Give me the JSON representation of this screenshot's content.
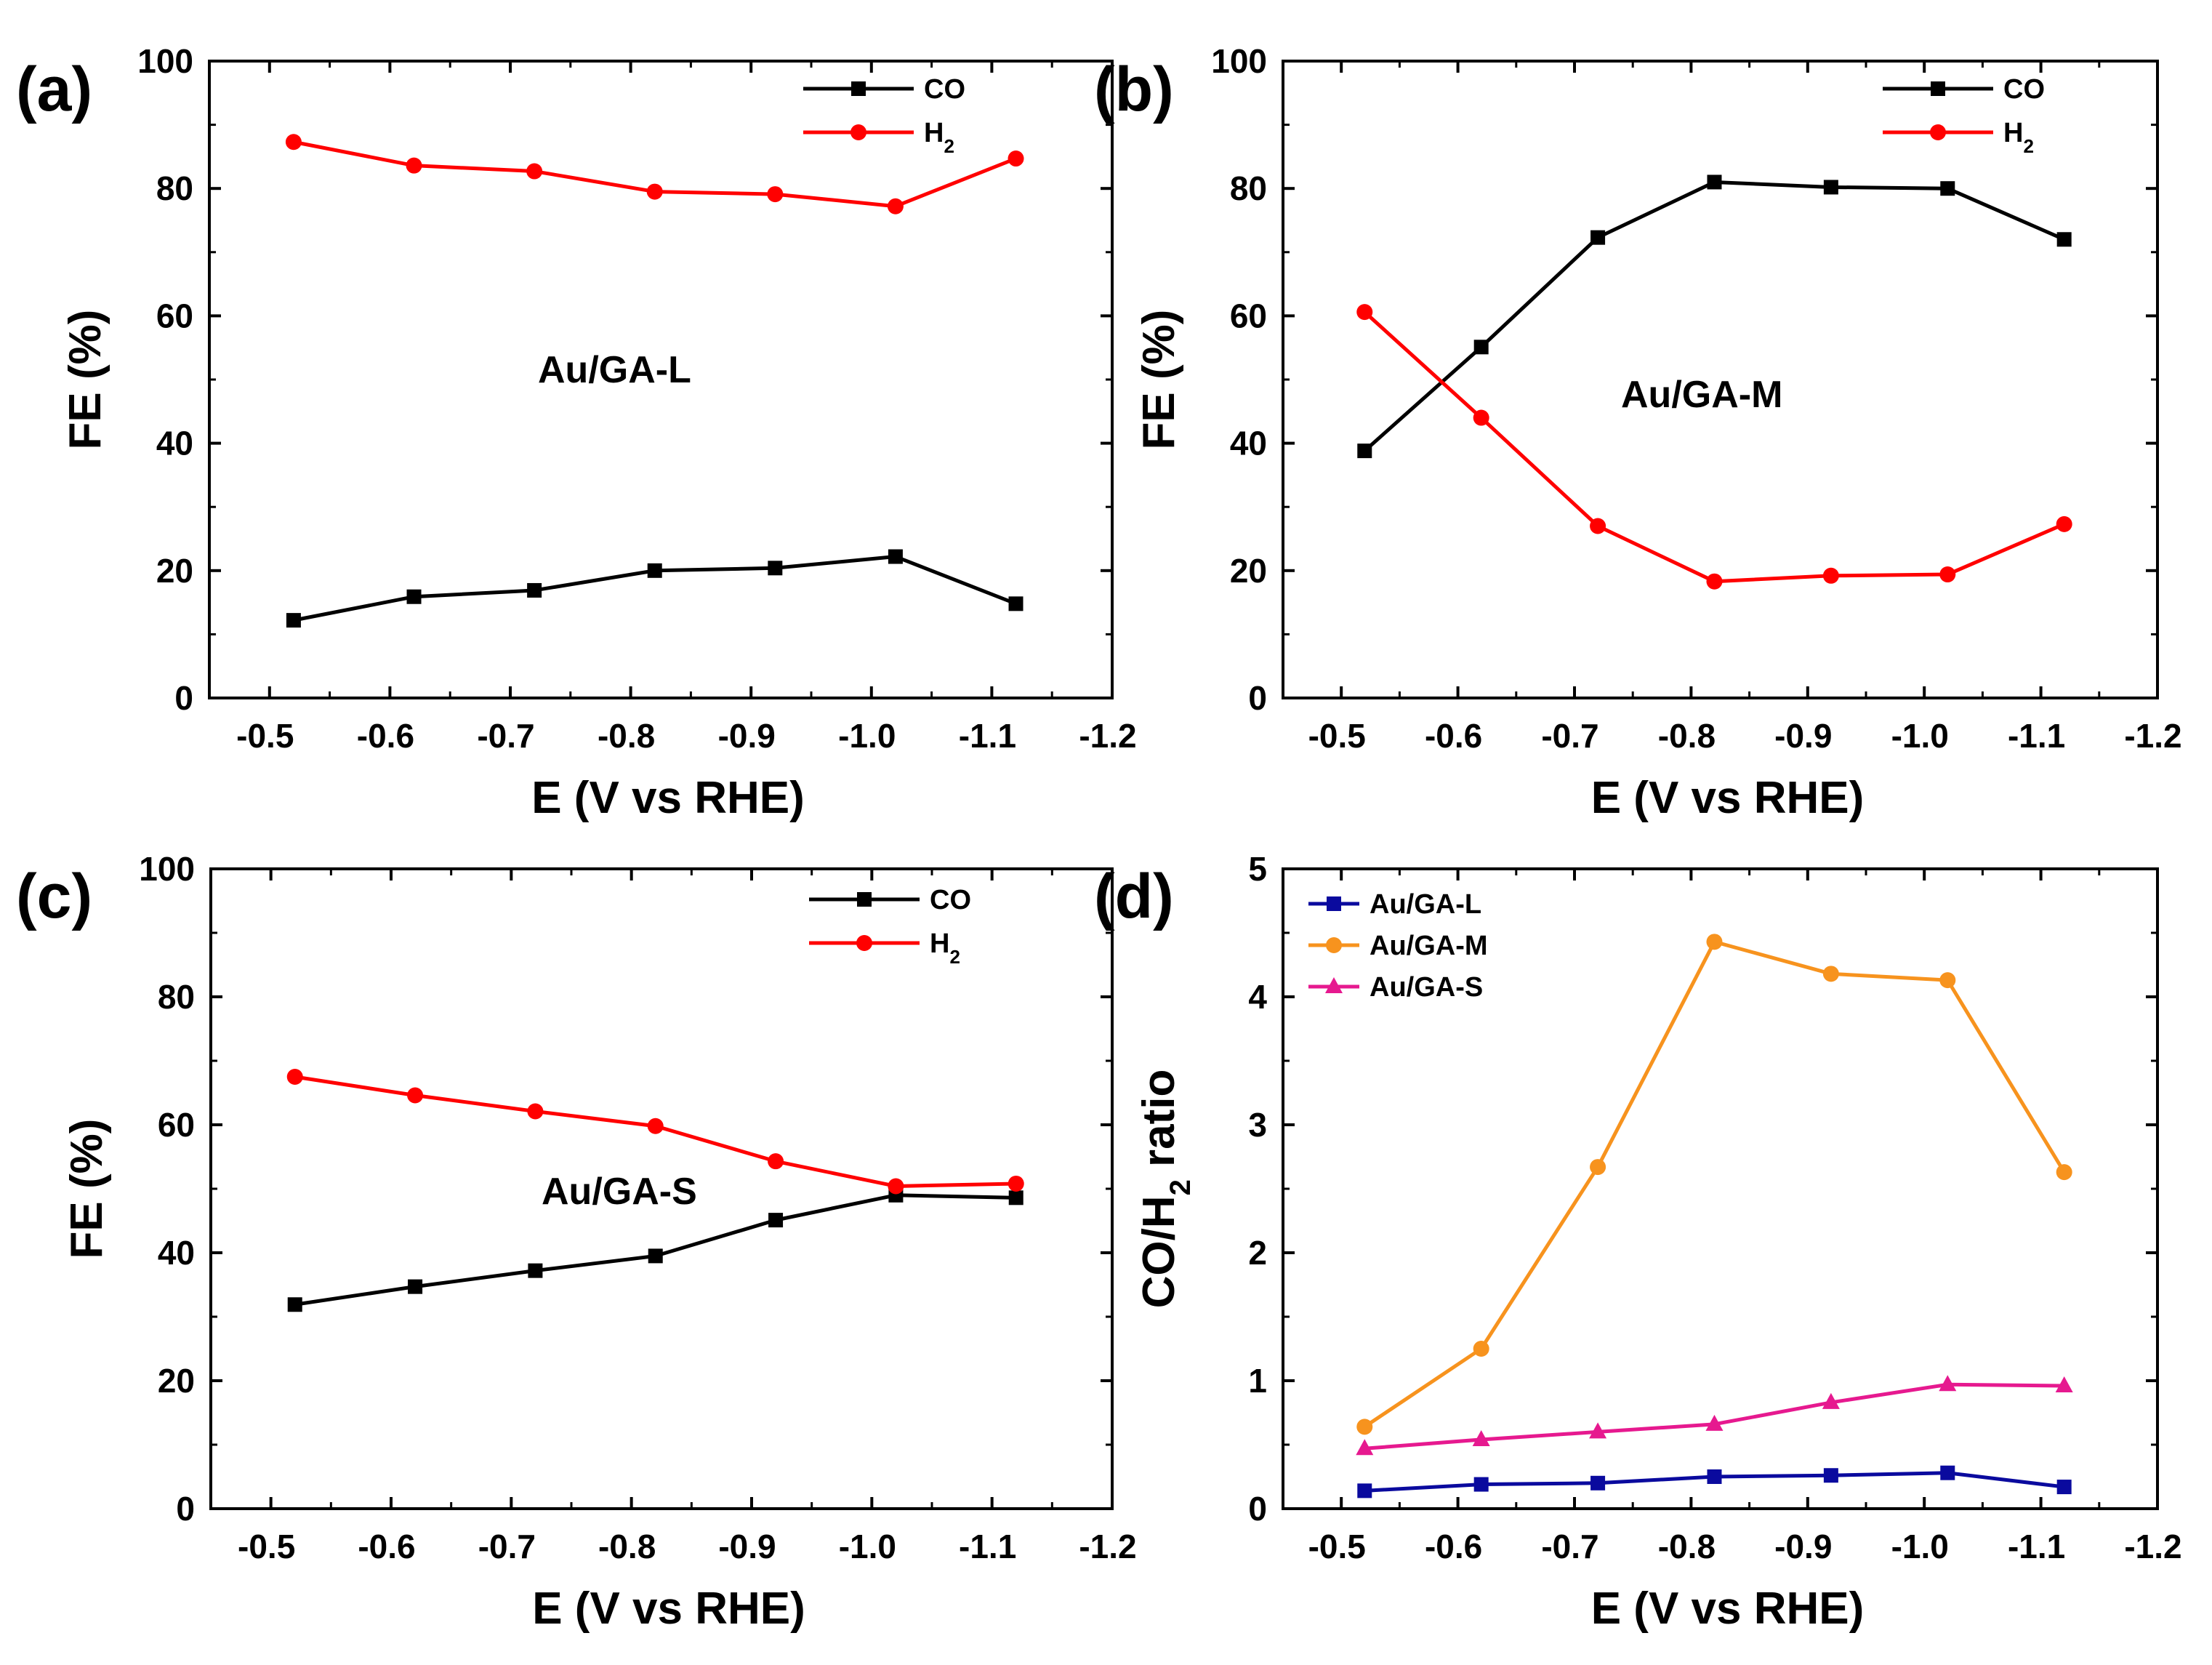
{
  "chart_data": [
    {
      "panel": "(a)",
      "type": "line",
      "xlabel": "E (V vs RHE)",
      "ylabel": "FE (%)",
      "annotation": "Au/GA-L",
      "xlim": [
        -0.45,
        -1.2
      ],
      "ylim": [
        0,
        100
      ],
      "xticks": [
        "-0.5",
        "-0.6",
        "-0.7",
        "-0.8",
        "-0.9",
        "-1.0",
        "-1.1",
        "-1.2"
      ],
      "yticks": [
        "0",
        "20",
        "40",
        "60",
        "80",
        "100"
      ],
      "legend_position": "top-right",
      "x": [
        -0.52,
        -0.62,
        -0.72,
        -0.82,
        -0.92,
        -1.02,
        -1.12
      ],
      "series": [
        {
          "name": "CO",
          "name_main": "CO",
          "name_sub": "",
          "color": "#000000",
          "marker": "square",
          "values": [
            12.2,
            15.9,
            16.9,
            20.0,
            20.4,
            22.2,
            14.8
          ]
        },
        {
          "name": "H2",
          "name_main": "H",
          "name_sub": "2",
          "color": "#ff0000",
          "marker": "circle",
          "values": [
            87.3,
            83.6,
            82.7,
            79.5,
            79.1,
            77.2,
            84.7
          ]
        }
      ]
    },
    {
      "panel": "(b)",
      "type": "line",
      "xlabel": "E (V vs RHE)",
      "ylabel": "FE (%)",
      "annotation": "Au/GA-M",
      "xlim": [
        -0.45,
        -1.2
      ],
      "ylim": [
        0,
        100
      ],
      "xticks": [
        "-0.5",
        "-0.6",
        "-0.7",
        "-0.8",
        "-0.9",
        "-1.0",
        "-1.1",
        "-1.2"
      ],
      "yticks": [
        "0",
        "20",
        "40",
        "60",
        "80",
        "100"
      ],
      "legend_position": "top-right",
      "x": [
        -0.52,
        -0.62,
        -0.72,
        -0.82,
        -0.92,
        -1.02,
        -1.12
      ],
      "series": [
        {
          "name": "CO",
          "name_main": "CO",
          "name_sub": "",
          "color": "#000000",
          "marker": "square",
          "values": [
            38.8,
            55.1,
            72.3,
            81.0,
            80.2,
            80.0,
            72.0
          ]
        },
        {
          "name": "H2",
          "name_main": "H",
          "name_sub": "2",
          "color": "#ff0000",
          "marker": "circle",
          "values": [
            60.6,
            44.0,
            27.0,
            18.3,
            19.2,
            19.4,
            27.3
          ]
        }
      ]
    },
    {
      "panel": "(c)",
      "type": "line",
      "xlabel": "E (V vs RHE)",
      "ylabel": "FE (%)",
      "annotation": "Au/GA-S",
      "xlim": [
        -0.45,
        -1.2
      ],
      "ylim": [
        0,
        100
      ],
      "xticks": [
        "-0.5",
        "-0.6",
        "-0.7",
        "-0.8",
        "-0.9",
        "-1.0",
        "-1.1",
        "-1.2"
      ],
      "yticks": [
        "0",
        "20",
        "40",
        "60",
        "80",
        "100"
      ],
      "legend_position": "top-right",
      "x": [
        -0.52,
        -0.62,
        -0.72,
        -0.82,
        -0.92,
        -1.02,
        -1.12
      ],
      "series": [
        {
          "name": "CO",
          "name_main": "CO",
          "name_sub": "",
          "color": "#000000",
          "marker": "square",
          "values": [
            31.9,
            34.7,
            37.2,
            39.5,
            45.1,
            49.0,
            48.6
          ]
        },
        {
          "name": "H2",
          "name_main": "H",
          "name_sub": "2",
          "color": "#ff0000",
          "marker": "circle",
          "values": [
            67.5,
            64.6,
            62.1,
            59.8,
            54.3,
            50.4,
            50.8
          ]
        }
      ]
    },
    {
      "panel": "(d)",
      "type": "line",
      "xlabel": "E (V vs RHE)",
      "ylabel": "CO/H2 ratio",
      "ylabel_parts": [
        "CO/H",
        "2",
        " ratio"
      ],
      "annotation": "",
      "xlim": [
        -0.45,
        -1.2
      ],
      "ylim": [
        0,
        5
      ],
      "xticks": [
        "-0.5",
        "-0.6",
        "-0.7",
        "-0.8",
        "-0.9",
        "-1.0",
        "-1.1",
        "-1.2"
      ],
      "yticks": [
        "0",
        "1",
        "2",
        "3",
        "4",
        "5"
      ],
      "legend_position": "top-left",
      "x": [
        -0.52,
        -0.62,
        -0.72,
        -0.82,
        -0.92,
        -1.02,
        -1.12
      ],
      "series": [
        {
          "name": "Au/GA-L",
          "name_main": "Au/GA-L",
          "name_sub": "",
          "color": "#0a0a9e",
          "marker": "square",
          "values": [
            0.14,
            0.19,
            0.2,
            0.25,
            0.26,
            0.28,
            0.17
          ]
        },
        {
          "name": "Au/GA-M",
          "name_main": "Au/GA-M",
          "name_sub": "",
          "color": "#f7931e",
          "marker": "circle",
          "values": [
            0.64,
            1.25,
            2.67,
            4.43,
            4.18,
            4.13,
            2.63
          ]
        },
        {
          "name": "Au/GA-S",
          "name_main": "Au/GA-S",
          "name_sub": "",
          "color": "#e6198f",
          "marker": "triangle",
          "values": [
            0.47,
            0.54,
            0.6,
            0.66,
            0.83,
            0.97,
            0.96
          ]
        }
      ]
    }
  ]
}
